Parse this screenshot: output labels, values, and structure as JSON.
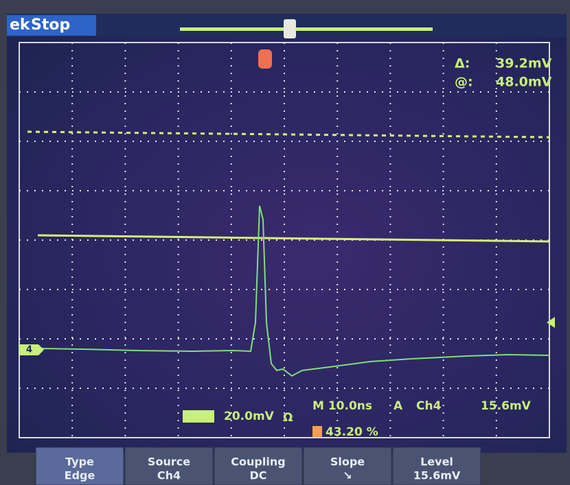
{
  "header": {
    "brand": "ek",
    "status": "Stop"
  },
  "cursor_readout": {
    "delta_label": "Δ:",
    "delta": "39.2mV",
    "at_label": "@:",
    "at": "48.0mV"
  },
  "channel_marker": "4",
  "status_bar": {
    "scale": "20.0mV",
    "impedance": "Ω",
    "timebase": "M 10.0ns",
    "trigger_mode": "A",
    "trigger_source": "Ch4",
    "trigger_level": "15.6mV",
    "trigger_position": "43.20 %"
  },
  "menu": [
    {
      "label": "Type",
      "value": "Edge"
    },
    {
      "label": "Source",
      "value": "Ch4"
    },
    {
      "label": "Coupling",
      "value": "DC"
    },
    {
      "label": "Slope",
      "value": "↘"
    },
    {
      "label": "Level",
      "value": "15.6mV"
    }
  ]
}
